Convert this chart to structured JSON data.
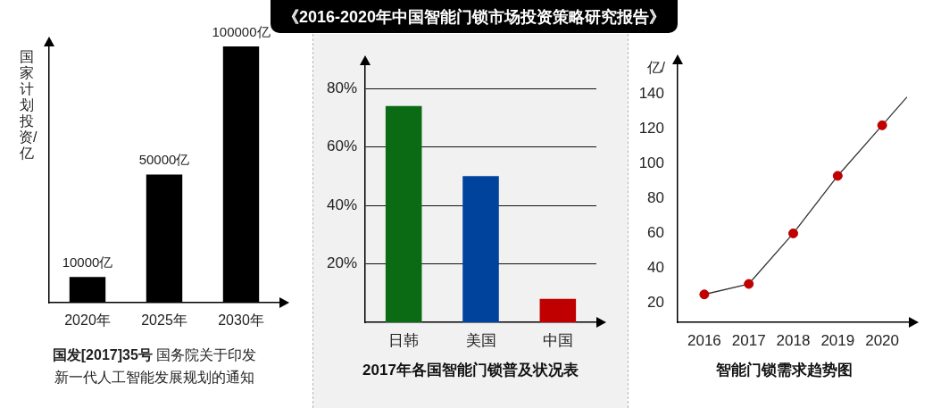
{
  "chart_data": [
    {
      "type": "other",
      "title": "《2016-2020年中国智能门锁市场投资策略研究报告》"
    },
    {
      "type": "bar",
      "categories": [
        "2020年",
        "2025年",
        "2030年"
      ],
      "values": [
        10000,
        50000,
        100000
      ],
      "value_labels": [
        "10000亿",
        "50000亿",
        "100000亿"
      ],
      "color": "#000000",
      "ylabel": "国家计划投资/亿",
      "tick_labels": "x",
      "annotations": [
        "国发[2017]35号",
        "国务院关于印发",
        "新一代人工智能发展规划的通知"
      ]
    },
    {
      "type": "bar",
      "title": "2017年各国智能门锁普及状况表",
      "categories": [
        "日韩",
        "美国",
        "中国"
      ],
      "values": [
        74,
        50,
        8
      ],
      "colors": [
        "#0b6b14",
        "#00439c",
        "#c00000"
      ],
      "ylim": [
        0,
        88
      ],
      "yticks": [
        {
          "value": 20,
          "label": "20%"
        },
        {
          "value": 40,
          "label": "40%"
        },
        {
          "value": 60,
          "label": "60%"
        },
        {
          "value": 80,
          "label": "80%"
        }
      ],
      "grid": "y"
    },
    {
      "type": "line",
      "title": "智能门锁需求趋势图",
      "ylabel": "亿/",
      "xlim": [
        2015.4,
        2020.6
      ],
      "xticks": [
        2016,
        2017,
        2018,
        2019,
        2020
      ],
      "ylim": [
        9,
        157
      ],
      "yticks": [
        20,
        40,
        60,
        80,
        100,
        120,
        140
      ],
      "marker": "circle",
      "series": [
        {
          "x": [
            2016,
            2017,
            2018,
            2019,
            2020
          ],
          "values": [
            25,
            31,
            60,
            93,
            122
          ],
          "color": "#333333",
          "colors": [
            "#c00000",
            "#c00000",
            "#c00000",
            "#c00000",
            "#c00000"
          ]
        },
        {
          "x": [
            2020,
            2020.55
          ],
          "values": [
            122,
            138
          ],
          "color": "#333333",
          "marker": "none"
        }
      ]
    }
  ]
}
